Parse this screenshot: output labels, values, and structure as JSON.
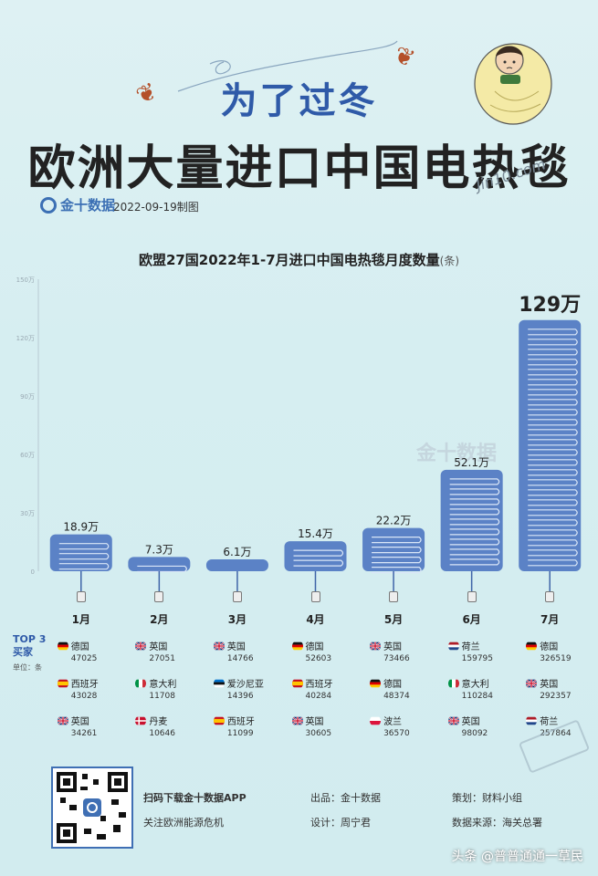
{
  "header": {
    "title_line1": "为了过冬",
    "title_line2": "欧洲大量进口中国电热毯",
    "brand": "金十数据",
    "date": "2022-09-19制图",
    "cartoon_caption": "Jin10.com"
  },
  "chart_data": {
    "type": "bar",
    "title": "欧盟27国2022年1-7月进口中国电热毯月度数量",
    "title_unit": "(条)",
    "categories": [
      "1月",
      "2月",
      "3月",
      "4月",
      "5月",
      "6月",
      "7月"
    ],
    "values": [
      18.9,
      7.3,
      6.1,
      15.4,
      22.2,
      52.1,
      129
    ],
    "value_labels": [
      "18.9万",
      "7.3万",
      "6.1万",
      "15.4万",
      "22.2万",
      "52.1万",
      "129万"
    ],
    "y_ticks": [
      "0",
      "30万",
      "60万",
      "90万",
      "120万",
      "150万"
    ],
    "ylim": [
      0,
      150
    ],
    "grid": false,
    "watermark": "金十数据"
  },
  "top3": {
    "label_line1": "TOP 3",
    "label_line2": "买家",
    "unit_label": "单位：条",
    "months": [
      [
        {
          "flag": "de",
          "country": "德国",
          "value": "47025"
        },
        {
          "flag": "es",
          "country": "西班牙",
          "value": "43028"
        },
        {
          "flag": "gb",
          "country": "英国",
          "value": "34261"
        }
      ],
      [
        {
          "flag": "gb",
          "country": "英国",
          "value": "27051"
        },
        {
          "flag": "it",
          "country": "意大利",
          "value": "11708"
        },
        {
          "flag": "dk",
          "country": "丹麦",
          "value": "10646"
        }
      ],
      [
        {
          "flag": "gb",
          "country": "英国",
          "value": "14766"
        },
        {
          "flag": "ee",
          "country": "爱沙尼亚",
          "value": "14396"
        },
        {
          "flag": "es",
          "country": "西班牙",
          "value": "11099"
        }
      ],
      [
        {
          "flag": "de",
          "country": "德国",
          "value": "52603"
        },
        {
          "flag": "es",
          "country": "西班牙",
          "value": "40284"
        },
        {
          "flag": "gb",
          "country": "英国",
          "value": "30605"
        }
      ],
      [
        {
          "flag": "gb",
          "country": "英国",
          "value": "73466"
        },
        {
          "flag": "de",
          "country": "德国",
          "value": "48374"
        },
        {
          "flag": "pl",
          "country": "波兰",
          "value": "36570"
        }
      ],
      [
        {
          "flag": "nl",
          "country": "荷兰",
          "value": "159795"
        },
        {
          "flag": "it",
          "country": "意大利",
          "value": "110284"
        },
        {
          "flag": "gb",
          "country": "英国",
          "value": "98092"
        }
      ],
      [
        {
          "flag": "de",
          "country": "德国",
          "value": "326519"
        },
        {
          "flag": "gb",
          "country": "英国",
          "value": "292357"
        },
        {
          "flag": "nl",
          "country": "荷兰",
          "value": "257864"
        }
      ]
    ]
  },
  "footer": {
    "qr_line1": "扫码下载金十数据APP",
    "qr_line2": "关注欧洲能源危机",
    "producer": "出品：金十数据",
    "designer": "设计：周宁君",
    "planner": "策划：财料小组",
    "source": "数据来源：海关总署",
    "bottom_watermark": "头条 @普普通通一草民"
  },
  "colors": {
    "background": "#d8eff2",
    "bar": "#5b82c6",
    "bar_dark": "#3f64a8",
    "title_blue": "#2f5aa8"
  }
}
